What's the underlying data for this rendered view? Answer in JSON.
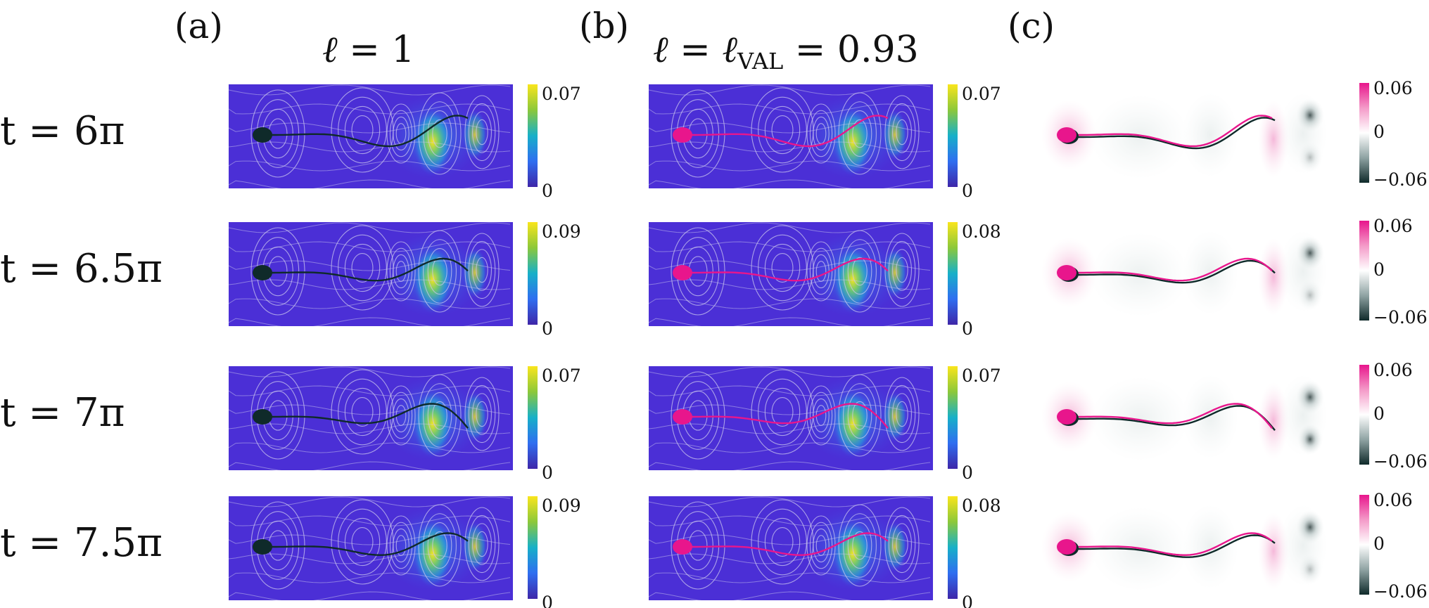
{
  "panel_labels": [
    "(a)",
    "(b)",
    "(c)"
  ],
  "column_titles": {
    "a": {
      "symbol": "ℓ",
      "rest": " = 1"
    },
    "b": {
      "symbol": "ℓ",
      "rest": " = ",
      "symbol2": "ℓ",
      "sub": "VAL",
      "rest2": " = 0.93"
    }
  },
  "rows": [
    {
      "time": "t = 6π",
      "a_max": "0.07",
      "a_min": "0",
      "b_max": "0.07",
      "b_min": "0",
      "c_max": "0.06",
      "c_mid": "0",
      "c_min": "−0.06"
    },
    {
      "time": "t = 6.5π",
      "a_max": "0.09",
      "a_min": "0",
      "b_max": "0.08",
      "b_min": "0",
      "c_max": "0.06",
      "c_mid": "0",
      "c_min": "−0.06"
    },
    {
      "time": "t = 7π",
      "a_max": "0.07",
      "a_min": "0",
      "b_max": "0.07",
      "b_min": "0",
      "c_max": "0.06",
      "c_mid": "0",
      "c_min": "−0.06"
    },
    {
      "time": "t = 7.5π",
      "a_max": "0.09",
      "a_min": "0",
      "b_max": "0.08",
      "b_min": "0",
      "c_max": "0.06",
      "c_mid": "0",
      "c_min": "−0.06"
    }
  ],
  "colors": {
    "field_low": "#4b2fd6",
    "field_high": "#f5e51b",
    "streamline": "#c9c6ee",
    "swimmer_dark": "#0f2a2a",
    "swimmer_pink": "#e8168c",
    "diverging_pos": "#e8168c",
    "diverging_neg": "#0f2a2a"
  }
}
